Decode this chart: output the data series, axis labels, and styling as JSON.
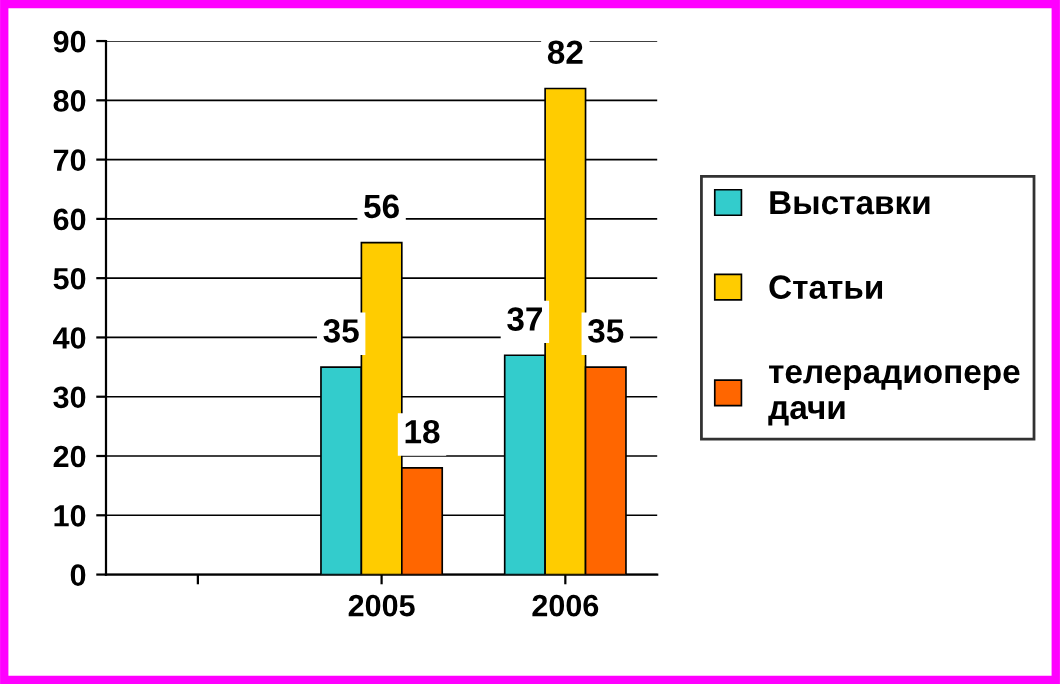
{
  "chart_data": {
    "type": "bar",
    "categories": [
      null,
      "2005",
      "2006"
    ],
    "series": [
      {
        "name": "Выставки",
        "color": "#33cccc",
        "values": [
          null,
          35,
          37
        ]
      },
      {
        "name": "Статьи",
        "color": "#ffcc00",
        "values": [
          null,
          56,
          82
        ]
      },
      {
        "name": "телерадиопередачи",
        "color": "#ff6600",
        "values": [
          null,
          18,
          35
        ]
      }
    ],
    "ylim": [
      0,
      90
    ],
    "yticks": [
      0,
      10,
      20,
      30,
      40,
      50,
      60,
      70,
      80,
      90
    ],
    "grid": "y",
    "legend": "right",
    "data_labels": true
  }
}
